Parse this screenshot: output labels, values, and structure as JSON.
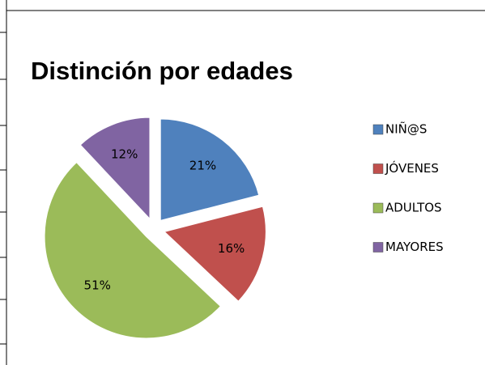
{
  "chart_data": {
    "type": "pie",
    "title": "Distinción por edades",
    "categories": [
      "NIÑ@S",
      "JÓVENES",
      "ADULTOS",
      "MAYORES"
    ],
    "values": [
      21,
      16,
      51,
      12
    ],
    "value_labels": [
      "21%",
      "16%",
      "51%",
      "12%"
    ],
    "colors": [
      "#4f81bd",
      "#c0504d",
      "#9bbb59",
      "#8064a2"
    ],
    "legend": "right"
  }
}
